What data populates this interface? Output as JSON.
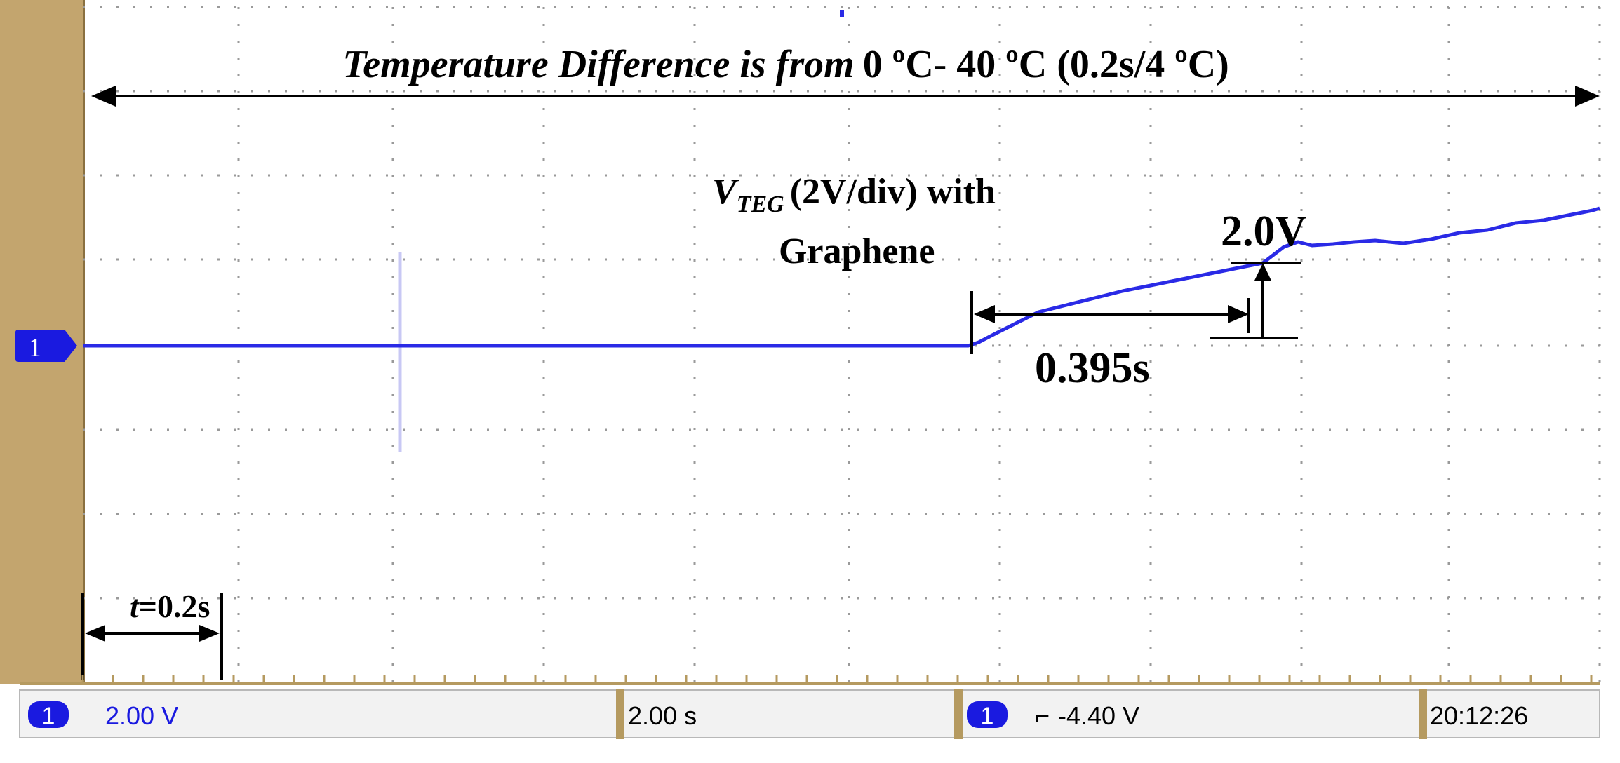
{
  "annotations": {
    "temperature_title_italic": "Temperature Difference is from",
    "temperature_title_range": "0 ºC- 40 ºC (0.2s/4 ºC)",
    "vteg_label_v": "V",
    "vteg_label_sub": "TEG",
    "vteg_label_rest": "(2V/div) with",
    "vteg_label_line2": "Graphene",
    "voltage_mark": "2.0V",
    "time_mark": "0.395s",
    "t_label_var": "t",
    "t_label_val": "=0.2s"
  },
  "channel_marker": "1",
  "status_bar": {
    "ch1_badge": "1",
    "ch1_scale": "2.00 V",
    "timebase": "2.00 s",
    "trigger_badge": "1",
    "trigger_symbol": "⌐",
    "trigger_level": "-4.40 V",
    "clock": "20:12:26"
  },
  "colors": {
    "trace": "#2a2ae6",
    "badge": "#1a1ae0",
    "bezel": "#c3a56e",
    "grid": "#9a9a9a"
  }
}
